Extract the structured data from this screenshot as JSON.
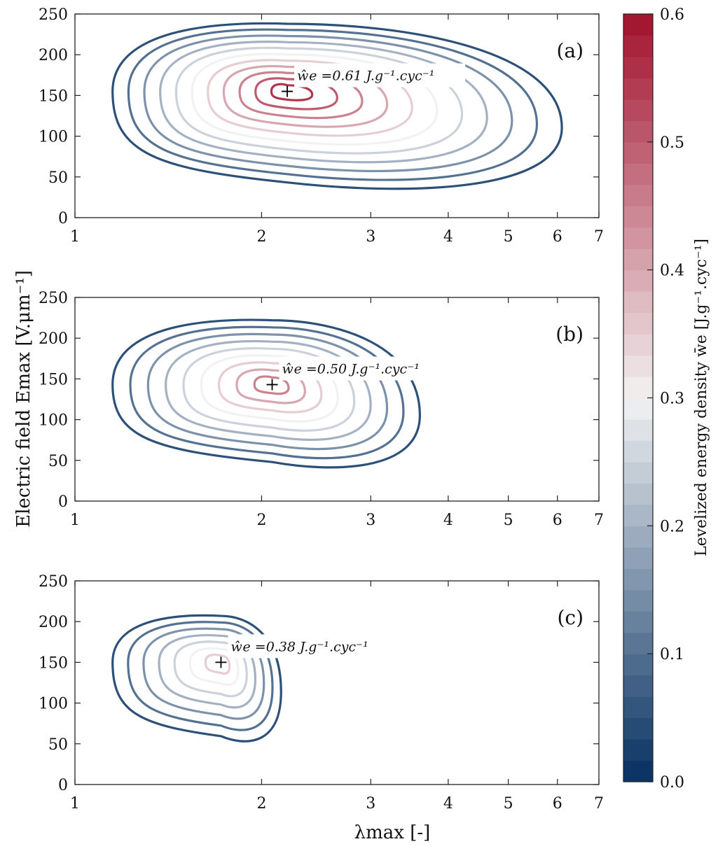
{
  "chart_data": {
    "type": "contour",
    "xlabel": "λmax [-]",
    "ylabel": "Electric field Emax [V.μm⁻¹]",
    "x_scale": "log",
    "xlim": [
      1,
      7
    ],
    "ylim": [
      0,
      250
    ],
    "x_ticks": [
      1,
      2,
      3,
      4,
      5,
      6,
      7
    ],
    "y_ticks": [
      0,
      50,
      100,
      150,
      200,
      250
    ],
    "colorbar": {
      "label": "Levelized energy density w̄e [J.g⁻¹.cyc⁻¹]",
      "range": [
        0.0,
        0.6
      ],
      "ticks": [
        "0.0",
        "0.1",
        "0.2",
        "0.3",
        "0.4",
        "0.5",
        "0.6"
      ],
      "low_color": "#053061",
      "mid_color": "#f2f2f2",
      "high_color": "#a2112c"
    },
    "panels": [
      {
        "label": "(a)",
        "annotation": "ŵe =0.61 J.g⁻¹.cyc⁻¹",
        "max_point": {
          "x": 2.2,
          "y": 155,
          "value": 0.61
        },
        "contour_levels": [
          0.05,
          0.1,
          0.15,
          0.2,
          0.25,
          0.3,
          0.35,
          0.4,
          0.45,
          0.5,
          0.55
        ],
        "outer_contour": {
          "x_min": 1.15,
          "x_max": 6.1,
          "y_min": 28,
          "y_max": 238
        }
      },
      {
        "label": "(b)",
        "annotation": "ŵe =0.50 J.g⁻¹.cyc⁻¹",
        "max_point": {
          "x": 2.08,
          "y": 143,
          "value": 0.5
        },
        "contour_levels": [
          0.05,
          0.1,
          0.15,
          0.2,
          0.25,
          0.3,
          0.35,
          0.4,
          0.45
        ],
        "outer_contour": {
          "x_min": 1.15,
          "x_max": 3.6,
          "y_min": 35,
          "y_max": 222
        }
      },
      {
        "label": "(c)",
        "annotation": "ŵe =0.38 J.g⁻¹.cyc⁻¹",
        "max_point": {
          "x": 1.72,
          "y": 150,
          "value": 0.38
        },
        "contour_levels": [
          0.05,
          0.1,
          0.15,
          0.2,
          0.25,
          0.3,
          0.35
        ],
        "outer_contour": {
          "x_min": 1.15,
          "x_max": 2.15,
          "y_min": 47,
          "y_max": 207
        }
      }
    ]
  }
}
